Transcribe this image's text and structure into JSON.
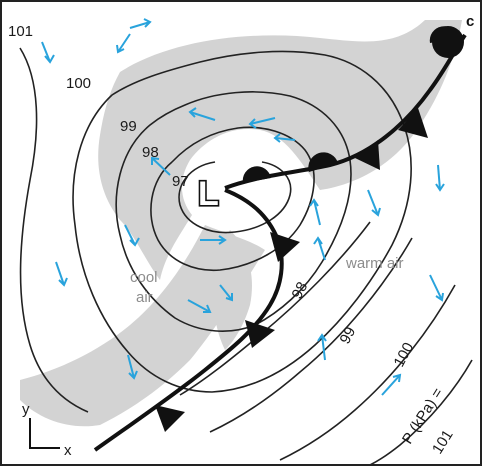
{
  "panel_label": "c",
  "center_label": "L",
  "isobars": [
    {
      "label": "97"
    },
    {
      "label": "98"
    },
    {
      "label": "99"
    },
    {
      "label": "100"
    },
    {
      "label": "101"
    }
  ],
  "isobars_right": [
    {
      "label": "98"
    },
    {
      "label": "99"
    },
    {
      "label": "100"
    }
  ],
  "airmass_labels": {
    "warm": "warm air",
    "cool_line1": "cool",
    "cool_line2": "air"
  },
  "pressure_note": {
    "line1": "P (kPa) =",
    "line2": "101"
  },
  "axes": {
    "y": "y",
    "x": "x"
  },
  "colors": {
    "shading": "#d3d3d3",
    "wind_arrows": "#29a3dc",
    "fronts": "#111111",
    "isobars": "#222222"
  }
}
